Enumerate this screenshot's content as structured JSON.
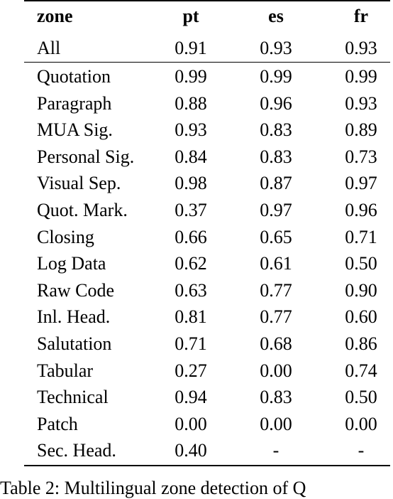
{
  "table": {
    "headers": {
      "zone": "zone",
      "pt": "pt",
      "es": "es",
      "fr": "fr"
    },
    "summary_row": {
      "zone": "All",
      "pt": "0.91",
      "es": "0.93",
      "fr": "0.93"
    },
    "rows": [
      {
        "zone": "Quotation",
        "pt": "0.99",
        "es": "0.99",
        "fr": "0.99"
      },
      {
        "zone": "Paragraph",
        "pt": "0.88",
        "es": "0.96",
        "fr": "0.93"
      },
      {
        "zone": "MUA Sig.",
        "pt": "0.93",
        "es": "0.83",
        "fr": "0.89"
      },
      {
        "zone": "Personal Sig.",
        "pt": "0.84",
        "es": "0.83",
        "fr": "0.73"
      },
      {
        "zone": "Visual Sep.",
        "pt": "0.98",
        "es": "0.87",
        "fr": "0.97"
      },
      {
        "zone": "Quot. Mark.",
        "pt": "0.37",
        "es": "0.97",
        "fr": "0.96"
      },
      {
        "zone": "Closing",
        "pt": "0.66",
        "es": "0.65",
        "fr": "0.71"
      },
      {
        "zone": "Log Data",
        "pt": "0.62",
        "es": "0.61",
        "fr": "0.50"
      },
      {
        "zone": "Raw Code",
        "pt": "0.63",
        "es": "0.77",
        "fr": "0.90"
      },
      {
        "zone": "Inl. Head.",
        "pt": "0.81",
        "es": "0.77",
        "fr": "0.60"
      },
      {
        "zone": "Salutation",
        "pt": "0.71",
        "es": "0.68",
        "fr": "0.86"
      },
      {
        "zone": "Tabular",
        "pt": "0.27",
        "es": "0.00",
        "fr": "0.74"
      },
      {
        "zone": "Technical",
        "pt": "0.94",
        "es": "0.83",
        "fr": "0.50"
      },
      {
        "zone": "Patch",
        "pt": "0.00",
        "es": "0.00",
        "fr": "0.00"
      },
      {
        "zone": "Sec. Head.",
        "pt": "0.40",
        "es": "-",
        "fr": "-"
      }
    ]
  },
  "caption": "Table 2: Multilingual zone detection of Q"
}
